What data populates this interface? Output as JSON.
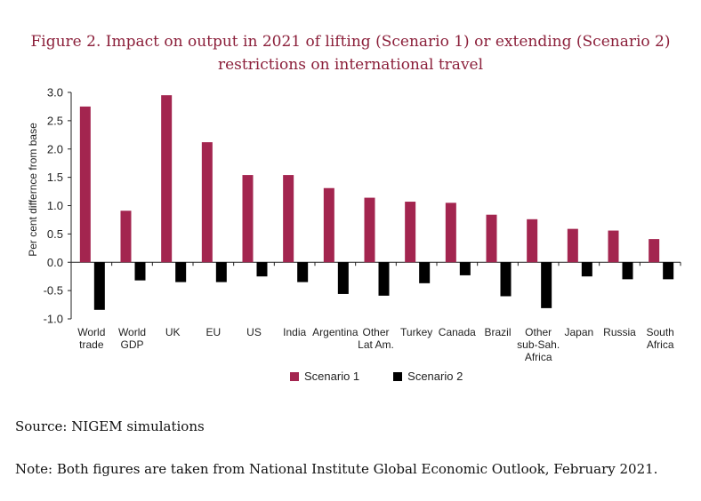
{
  "figure": {
    "title_line1": "Figure 2. Impact on output in 2021 of lifting (Scenario 1) or extending (Scenario 2)",
    "title_line2": "restrictions on international travel"
  },
  "source": "Source: NIGEM simulations",
  "note": "Note: Both figures are taken from National Institute Global Economic Outlook, February 2021.",
  "colors": {
    "scenario1": "#a3254f",
    "scenario2": "#000000"
  },
  "chart_data": {
    "type": "bar",
    "ylabel": "Per cent differnce from base",
    "ylim": [
      -1.0,
      3.0
    ],
    "yticks": [
      "3.0",
      "2.5",
      "2.0",
      "1.5",
      "1.0",
      "0.5",
      "0.0",
      "-0.5",
      "-1.0"
    ],
    "categories": [
      [
        "World",
        "trade"
      ],
      [
        "World",
        "GDP"
      ],
      [
        "UK"
      ],
      [
        "EU"
      ],
      [
        "US"
      ],
      [
        "India"
      ],
      [
        "Argentina"
      ],
      [
        "Other",
        "Lat Am."
      ],
      [
        "Turkey"
      ],
      [
        "Canada"
      ],
      [
        "Brazil"
      ],
      [
        "Other",
        "sub-Sah.",
        "Africa"
      ],
      [
        "Japan"
      ],
      [
        "Russia"
      ],
      [
        "South",
        "Africa"
      ]
    ],
    "series": [
      {
        "name": "Scenario 1",
        "values": [
          2.75,
          0.91,
          2.95,
          2.12,
          1.54,
          1.54,
          1.31,
          1.14,
          1.07,
          1.05,
          0.84,
          0.76,
          0.59,
          0.56,
          0.41
        ]
      },
      {
        "name": "Scenario 2",
        "values": [
          -0.84,
          -0.32,
          -0.35,
          -0.35,
          -0.25,
          -0.35,
          -0.56,
          -0.59,
          -0.37,
          -0.23,
          -0.6,
          -0.81,
          -0.25,
          -0.3,
          -0.3
        ]
      }
    ],
    "legend_position": "bottom-center",
    "grid": false
  }
}
